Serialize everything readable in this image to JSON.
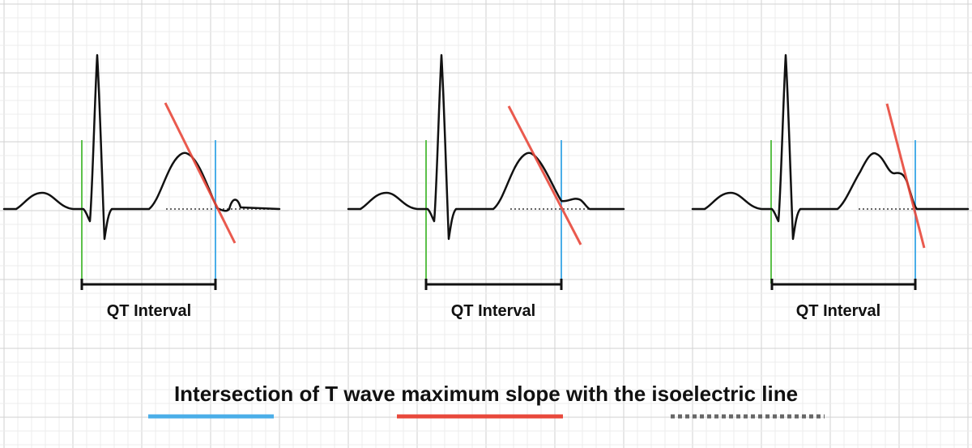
{
  "diagram": {
    "panels": [
      {
        "label": "QT Interval",
        "variant": "small-u-wave"
      },
      {
        "label": "QT Interval",
        "variant": "merged-u-wave"
      },
      {
        "label": "QT Interval",
        "variant": "notched-t-wave"
      }
    ],
    "caption": "Intersection of T wave maximum slope with the isoelectric line",
    "legend": [
      {
        "meaning": "qt-end-marker",
        "color": "#4aaee8",
        "style": "solid"
      },
      {
        "meaning": "t-wave-max-slope-tangent",
        "color": "#e8483b",
        "style": "solid"
      },
      {
        "meaning": "isoelectric-line",
        "color": "#666666",
        "style": "dotted"
      }
    ],
    "colors": {
      "ecg_trace": "#111111",
      "qrs_onset_marker": "#5cc04a",
      "qt_end_marker": "#4aaee8",
      "tangent": "#e8483b",
      "isoelectric": "#666666",
      "grid_minor": "#ececec",
      "grid_major": "#d2d2d2"
    }
  }
}
